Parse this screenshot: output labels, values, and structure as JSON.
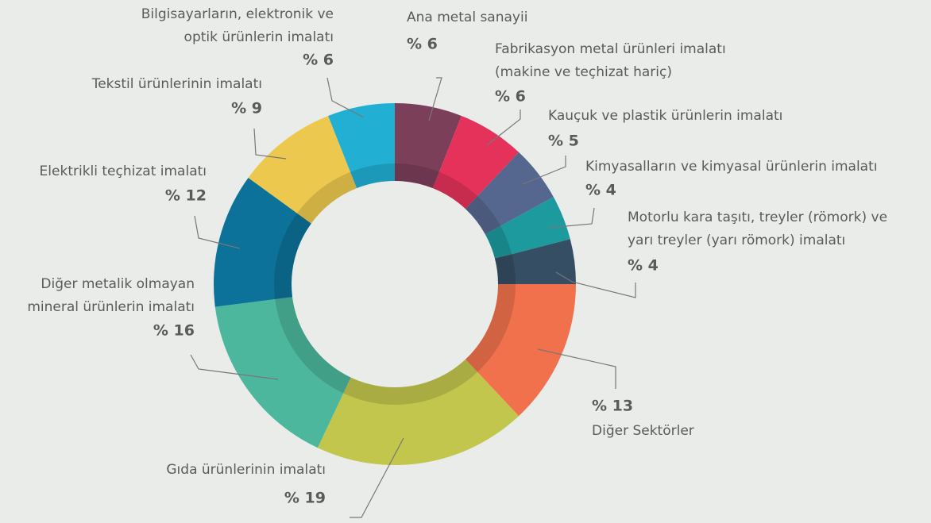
{
  "chart_data": {
    "type": "donut",
    "categories": [
      "Ana metal sanayii",
      "Fabrikasyon metal ürünleri imalatı\n(makine ve teçhizat hariç)",
      "Kauçuk ve plastik ürünlerin imalatı",
      "Kimyasalların ve kimyasal ürünlerin imalatı",
      "Motorlu kara taşıtı, treyler (römork) ve\nyarı treyler (yarı römork) imalatı",
      "Diğer Sektörler",
      "Gıda ürünlerinin imalatı",
      "Diğer metalik olmayan\nmineral ürünlerin imalatı",
      "Elektrikli teçhizat imalatı",
      "Tekstil ürünlerinin imalatı",
      "Bilgisayarların, elektronik ve\noptik ürünlerin imalatı"
    ],
    "values": [
      6,
      6,
      5,
      4,
      4,
      13,
      19,
      16,
      12,
      9,
      6
    ],
    "value_labels": [
      "% 6",
      "% 6",
      "% 5",
      "% 4",
      "% 4",
      "% 13",
      "% 19",
      "% 16",
      "% 12",
      "% 9",
      "% 6"
    ],
    "colors": [
      "#7b3f5a",
      "#e5325a",
      "#55678f",
      "#1c9a9e",
      "#364e63",
      "#f0714c",
      "#c3c64c",
      "#4cb79c",
      "#0c7299",
      "#ecc94e",
      "#21b0d4"
    ]
  }
}
